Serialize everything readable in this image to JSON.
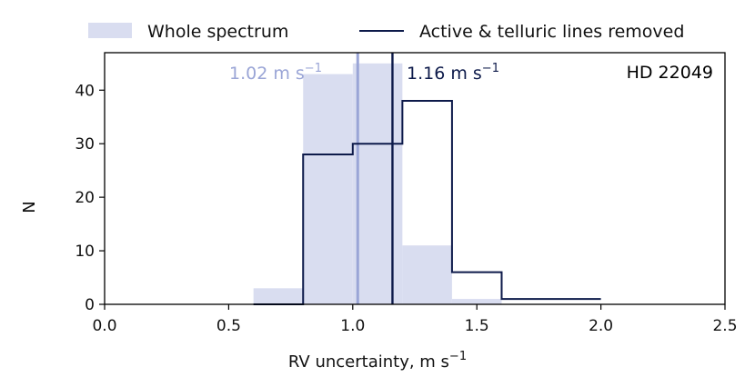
{
  "chart_data": {
    "type": "histogram",
    "title": "",
    "xlabel": "RV uncertainty, m s",
    "xlabel_sup": "−1",
    "ylabel": "N",
    "xlim": [
      0.0,
      2.5
    ],
    "ylim": [
      0,
      47
    ],
    "xticks": [
      {
        "value": 0.0,
        "label": "0.0"
      },
      {
        "value": 0.5,
        "label": "0.5"
      },
      {
        "value": 1.0,
        "label": "1.0"
      },
      {
        "value": 1.5,
        "label": "1.5"
      },
      {
        "value": 2.0,
        "label": "2.0"
      },
      {
        "value": 2.5,
        "label": "2.5"
      }
    ],
    "yticks": [
      {
        "value": 0,
        "label": "0"
      },
      {
        "value": 10,
        "label": "10"
      },
      {
        "value": 20,
        "label": "20"
      },
      {
        "value": 30,
        "label": "30"
      },
      {
        "value": 40,
        "label": "40"
      }
    ],
    "bin_edges": [
      0.6,
      0.8,
      1.0,
      1.2,
      1.4,
      1.6,
      1.8,
      2.0
    ],
    "series": [
      {
        "name": "Whole spectrum",
        "style": "filled",
        "color": "#d9ddf0",
        "counts": [
          3,
          43,
          45,
          11,
          1,
          0,
          0
        ]
      },
      {
        "name": "Active & telluric lines removed",
        "style": "step",
        "color": "#0d1a4a",
        "counts": [
          0,
          28,
          30,
          38,
          6,
          1,
          1
        ]
      }
    ],
    "medians": [
      {
        "series": "Whole spectrum",
        "value": 1.02,
        "text": "1.02 m s",
        "sup": "−1",
        "color": "#9aa5d6"
      },
      {
        "series": "Active & telluric lines removed",
        "value": 1.16,
        "text": "1.16 m s",
        "sup": "−1",
        "color": "#0d1a4a"
      }
    ],
    "annotation": "HD 22049",
    "legend_position": "top"
  }
}
